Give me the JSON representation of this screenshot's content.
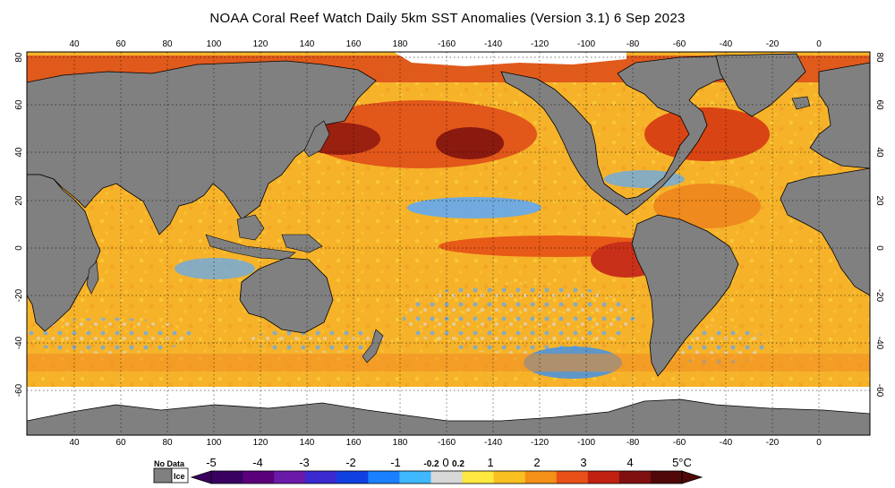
{
  "title": "NOAA Coral Reef Watch Daily 5km SST Anomalies (Version 3.1)   6 Sep 2023",
  "map": {
    "lon_ticks_top": [
      "40",
      "60",
      "80",
      "100",
      "120",
      "140",
      "160",
      "180",
      "-160",
      "-140",
      "-120",
      "-100",
      "-80",
      "-60",
      "-40",
      "-20",
      "0"
    ],
    "lon_ticks_bottom": [
      "40",
      "60",
      "80",
      "100",
      "120",
      "140",
      "160",
      "180",
      "-160",
      "-140",
      "-120",
      "-100",
      "-80",
      "-60",
      "-40",
      "-20",
      "0"
    ],
    "lat_ticks": [
      "80",
      "60",
      "40",
      "20",
      "0",
      "-20",
      "-40",
      "-60"
    ],
    "colors": {
      "land": "#808080",
      "ice": "#ffffff",
      "warm_mid": "#f6b02a",
      "warm_high": "#e8541a",
      "hot": "#7a1010",
      "cool": "#5aa8ff",
      "neutral": "#d8d8d8"
    }
  },
  "legend": {
    "no_data_label": "No Data",
    "ice_label": "Ice",
    "ticks": [
      "-5",
      "-4",
      "-3",
      "-2",
      "-1",
      "-0.2",
      "0",
      "0.2",
      "1",
      "2",
      "3",
      "4",
      "5°C"
    ],
    "colors": [
      "#3a0060",
      "#5a007a",
      "#6a1aa8",
      "#3a2ad0",
      "#1040e0",
      "#1a80ff",
      "#40b8ff",
      "#d8d8d8",
      "#ffe840",
      "#f8c020",
      "#f49018",
      "#e85018",
      "#c02010",
      "#801010",
      "#500808"
    ]
  }
}
